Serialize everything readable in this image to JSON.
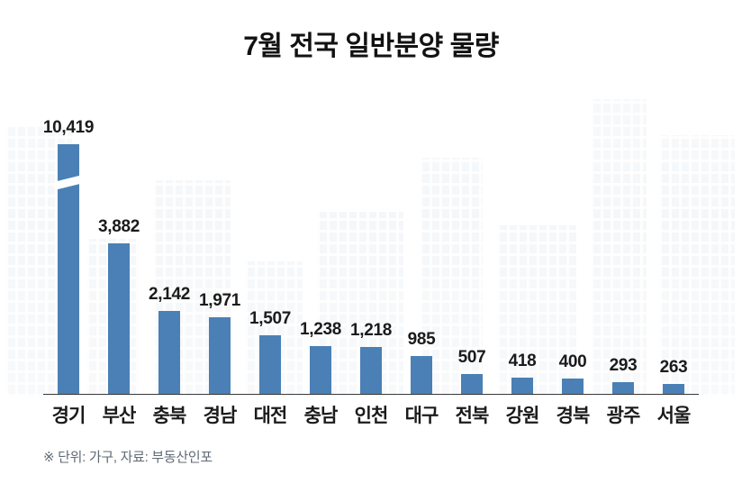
{
  "title": "7월 전국 일반분양 물량",
  "footnote": "※ 단위: 가구, 자료: 부동산인포",
  "chart_data": {
    "type": "bar",
    "title": "7월 전국 일반분양 물량",
    "categories": [
      "경기",
      "부산",
      "충북",
      "경남",
      "대전",
      "충남",
      "인천",
      "대구",
      "전북",
      "강원",
      "경북",
      "광주",
      "서울"
    ],
    "values": [
      10419,
      3882,
      2142,
      1971,
      1507,
      1238,
      1218,
      985,
      507,
      418,
      400,
      293,
      263
    ],
    "value_labels": [
      "10,419",
      "3,882",
      "2,142",
      "1,971",
      "1,507",
      "1,238",
      "1,218",
      "985",
      "507",
      "418",
      "400",
      "293",
      "263"
    ],
    "unit": "가구",
    "source": "부동산인포",
    "bar_color": "#4a80b5",
    "axis_break_on_first_bar": true,
    "ylim": [
      0,
      4300
    ],
    "grid": false,
    "legend": false,
    "xlabel": "",
    "ylabel": ""
  }
}
